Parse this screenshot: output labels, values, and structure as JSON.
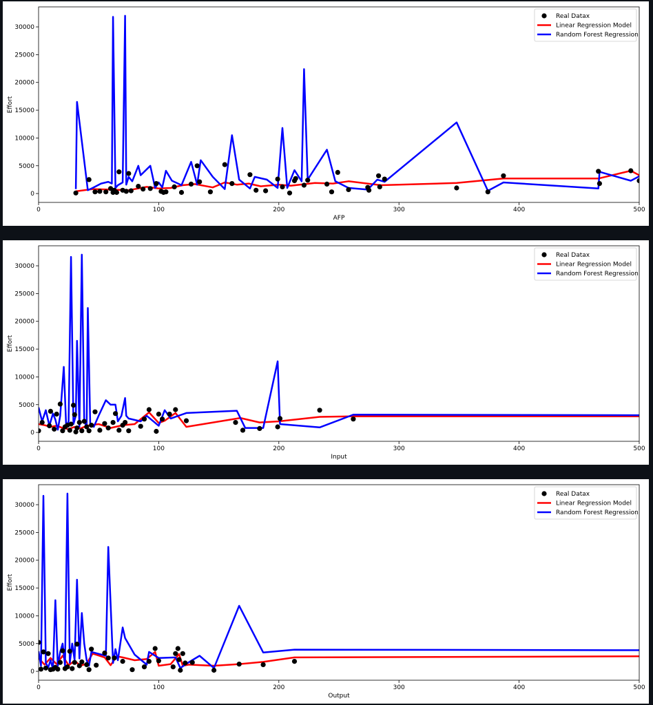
{
  "chart_data": [
    {
      "type": "line",
      "xlabel": "AFP",
      "ylabel": "Effort",
      "xlim": [
        0,
        500
      ],
      "ylim": [
        -1600,
        33600
      ],
      "xticks": [
        "0",
        "100",
        "200",
        "300",
        "400",
        "500"
      ],
      "yticks": [
        "0",
        "5000",
        "10000",
        "15000",
        "20000",
        "25000",
        "30000"
      ],
      "grid": false,
      "legend_position": "top-right",
      "series": [
        {
          "name": "Real Datax",
          "kind": "scatter",
          "color": "#000000",
          "x": [
            31,
            42,
            47,
            51,
            56,
            60,
            62,
            63,
            65,
            67,
            70,
            73,
            75,
            77,
            83,
            87,
            93,
            98,
            102,
            104,
            106,
            113,
            119,
            127,
            132,
            134,
            143,
            155,
            161,
            176,
            181,
            189,
            199,
            203,
            209,
            213,
            214,
            221,
            224,
            240,
            244,
            249,
            258,
            274,
            275,
            283,
            284,
            288,
            348,
            374,
            387,
            466,
            467,
            493,
            500
          ],
          "y": [
            100,
            2500,
            300,
            400,
            300,
            900,
            200,
            600,
            200,
            3900,
            600,
            400,
            3600,
            500,
            1300,
            800,
            900,
            1800,
            400,
            200,
            300,
            1200,
            200,
            1700,
            5000,
            2100,
            300,
            5200,
            1800,
            3400,
            600,
            500,
            2600,
            1200,
            100,
            2300,
            2700,
            1500,
            2400,
            1700,
            300,
            3800,
            700,
            1100,
            600,
            3200,
            1200,
            2600,
            1000,
            300,
            3200,
            4000,
            1800,
            4100,
            2300
          ]
        },
        {
          "name": "Linear Regression Model",
          "kind": "line",
          "color": "#ff0000",
          "x": [
            31,
            45,
            60,
            75,
            90,
            100,
            110,
            120,
            130,
            145,
            155,
            165,
            175,
            185,
            200,
            210,
            230,
            245,
            258,
            285,
            348,
            387,
            466,
            493,
            500
          ],
          "y": [
            400,
            800,
            700,
            600,
            1200,
            900,
            1000,
            1500,
            1700,
            1100,
            2000,
            1600,
            1800,
            1300,
            1600,
            1400,
            1900,
            1800,
            2200,
            1500,
            1900,
            2700,
            2700,
            4100,
            3300
          ]
        },
        {
          "name": "Random Forest Regression",
          "kind": "line",
          "color": "#0000ff",
          "x": [
            31,
            32,
            41,
            45,
            52,
            58,
            61,
            62,
            64,
            66,
            70,
            72,
            73,
            75,
            78,
            83,
            85,
            93,
            97,
            100,
            103,
            106,
            111,
            119,
            127,
            132,
            135,
            145,
            155,
            161,
            167,
            176,
            180,
            190,
            199,
            203,
            207,
            213,
            219,
            221,
            224,
            240,
            247,
            258,
            274,
            282,
            288,
            348,
            374,
            387,
            466,
            467,
            493,
            500
          ],
          "y": [
            800,
            16500,
            600,
            1000,
            1800,
            2100,
            1800,
            31800,
            1000,
            1500,
            2000,
            32000,
            1600,
            3000,
            2200,
            5000,
            3300,
            5000,
            1000,
            2000,
            1100,
            4100,
            2300,
            1500,
            5700,
            1600,
            6000,
            3000,
            800,
            10500,
            2500,
            900,
            3000,
            2500,
            1000,
            11800,
            1000,
            4200,
            2200,
            22400,
            2500,
            7900,
            2200,
            1000,
            700,
            2500,
            2100,
            12800,
            500,
            2000,
            900,
            3900,
            2300,
            3100
          ]
        }
      ]
    },
    {
      "type": "line",
      "xlabel": "Input",
      "ylabel": "Effort",
      "xlim": [
        0,
        500
      ],
      "ylim": [
        -1600,
        33600
      ],
      "xticks": [
        "0",
        "100",
        "200",
        "300",
        "400",
        "500"
      ],
      "yticks": [
        "0",
        "5000",
        "10000",
        "15000",
        "20000",
        "25000",
        "30000"
      ],
      "grid": false,
      "legend_position": "top-right",
      "series": [
        {
          "name": "Real Datax",
          "kind": "scatter",
          "color": "#000000",
          "x": [
            0,
            3,
            9,
            10,
            13,
            15,
            18,
            20,
            22,
            24,
            26,
            27,
            29,
            30,
            31,
            32,
            34,
            36,
            38,
            40,
            42,
            44,
            47,
            51,
            55,
            58,
            62,
            64,
            67,
            70,
            72,
            75,
            85,
            88,
            92,
            98,
            100,
            103,
            109,
            114,
            123,
            164,
            170,
            184,
            199,
            201,
            234,
            262
          ],
          "y": [
            300,
            1800,
            1200,
            3800,
            600,
            3300,
            5100,
            300,
            1000,
            1300,
            400,
            1500,
            4900,
            3200,
            100,
            800,
            1800,
            300,
            2000,
            1000,
            300,
            1300,
            3700,
            400,
            1600,
            800,
            1800,
            3400,
            400,
            1300,
            1800,
            300,
            1100,
            2400,
            4100,
            200,
            3300,
            2400,
            3300,
            4100,
            2100,
            1800,
            400,
            700,
            1000,
            2500,
            4000,
            2400
          ]
        },
        {
          "name": "Linear Regression Model",
          "kind": "line",
          "color": "#ff0000",
          "x": [
            0,
            5,
            10,
            15,
            20,
            25,
            30,
            35,
            40,
            50,
            60,
            70,
            80,
            92,
            100,
            105,
            114,
            123,
            168,
            184,
            200,
            234,
            262,
            500
          ],
          "y": [
            1500,
            1300,
            1000,
            1200,
            800,
            600,
            1000,
            700,
            1200,
            1500,
            800,
            1300,
            1500,
            3600,
            1700,
            2100,
            3500,
            1000,
            2600,
            1800,
            2000,
            2800,
            2900,
            2900
          ]
        },
        {
          "name": "Random Forest Regression",
          "kind": "line",
          "color": "#0000ff",
          "x": [
            0,
            3,
            6,
            9,
            12,
            14,
            16,
            18,
            21,
            23,
            25,
            27,
            29,
            31,
            32,
            34,
            36,
            38,
            40,
            41,
            43,
            46,
            50,
            56,
            60,
            64,
            66,
            69,
            72,
            73,
            75,
            85,
            90,
            100,
            105,
            110,
            123,
            165,
            172,
            187,
            199,
            201,
            234,
            262,
            500
          ],
          "y": [
            4500,
            2000,
            4000,
            1200,
            3400,
            2300,
            500,
            3000,
            11800,
            1000,
            2000,
            31600,
            1500,
            3000,
            16500,
            1000,
            32000,
            2000,
            1000,
            22400,
            1500,
            1000,
            3000,
            5800,
            5000,
            5000,
            2000,
            3000,
            6200,
            3000,
            2500,
            2000,
            3000,
            1200,
            4000,
            2500,
            3500,
            3900,
            800,
            800,
            12800,
            1500,
            900,
            3200,
            3100
          ]
        }
      ]
    },
    {
      "type": "line",
      "xlabel": "Output",
      "ylabel": "Effort",
      "xlim": [
        0,
        500
      ],
      "ylim": [
        -1600,
        33600
      ],
      "xticks": [
        "0",
        "100",
        "200",
        "300",
        "400",
        "500"
      ],
      "yticks": [
        "0",
        "5000",
        "10000",
        "15000",
        "20000",
        "25000",
        "30000"
      ],
      "grid": false,
      "legend_position": "top-right",
      "series": [
        {
          "name": "Real Datax",
          "kind": "scatter",
          "color": "#000000",
          "x": [
            0,
            2,
            4,
            6,
            8,
            10,
            12,
            14,
            16,
            18,
            20,
            22,
            24,
            26,
            28,
            30,
            32,
            34,
            36,
            40,
            42,
            44,
            48,
            55,
            58,
            63,
            70,
            78,
            88,
            92,
            97,
            100,
            112,
            114,
            116,
            117,
            118,
            120,
            122,
            128,
            146,
            167,
            187,
            213
          ],
          "y": [
            5200,
            400,
            3500,
            600,
            3200,
            300,
            400,
            700,
            400,
            1600,
            3700,
            500,
            800,
            3600,
            500,
            1600,
            4900,
            1000,
            1700,
            1200,
            300,
            4000,
            1100,
            3300,
            2400,
            2400,
            1800,
            300,
            800,
            1800,
            4100,
            1900,
            800,
            3200,
            4100,
            2100,
            200,
            3200,
            1500,
            1600,
            200,
            1300,
            1200,
            1800
          ]
        },
        {
          "name": "Linear Regression Model",
          "kind": "line",
          "color": "#ff0000",
          "x": [
            0,
            5,
            10,
            15,
            20,
            25,
            30,
            35,
            40,
            45,
            55,
            60,
            65,
            70,
            80,
            90,
            97,
            100,
            110,
            117,
            120,
            125,
            146,
            167,
            187,
            213,
            500
          ],
          "y": [
            2400,
            1200,
            2400,
            1300,
            2800,
            1100,
            1900,
            1000,
            1400,
            3200,
            2500,
            1100,
            2700,
            2500,
            2000,
            2200,
            3500,
            1000,
            1300,
            3100,
            1000,
            1200,
            1000,
            1300,
            1700,
            2500,
            2700
          ]
        },
        {
          "name": "Random Forest Regression",
          "kind": "line",
          "color": "#0000ff",
          "x": [
            0,
            2,
            4,
            6,
            8,
            10,
            12,
            14,
            16,
            18,
            20,
            22,
            24,
            26,
            28,
            30,
            32,
            34,
            36,
            38,
            40,
            42,
            44,
            56,
            58,
            62,
            64,
            66,
            70,
            72,
            80,
            90,
            92,
            100,
            114,
            118,
            124,
            134,
            146,
            167,
            187,
            213,
            500
          ],
          "y": [
            3600,
            1000,
            31600,
            1500,
            700,
            2000,
            400,
            12800,
            1000,
            3500,
            5000,
            1000,
            32000,
            1500,
            5000,
            2000,
            16500,
            2300,
            10500,
            5000,
            2000,
            1000,
            3500,
            2800,
            22400,
            1500,
            4000,
            2000,
            7900,
            6000,
            3000,
            1200,
            3500,
            2400,
            2500,
            600,
            1500,
            2800,
            600,
            11800,
            3400,
            3900,
            3800
          ]
        }
      ]
    }
  ]
}
